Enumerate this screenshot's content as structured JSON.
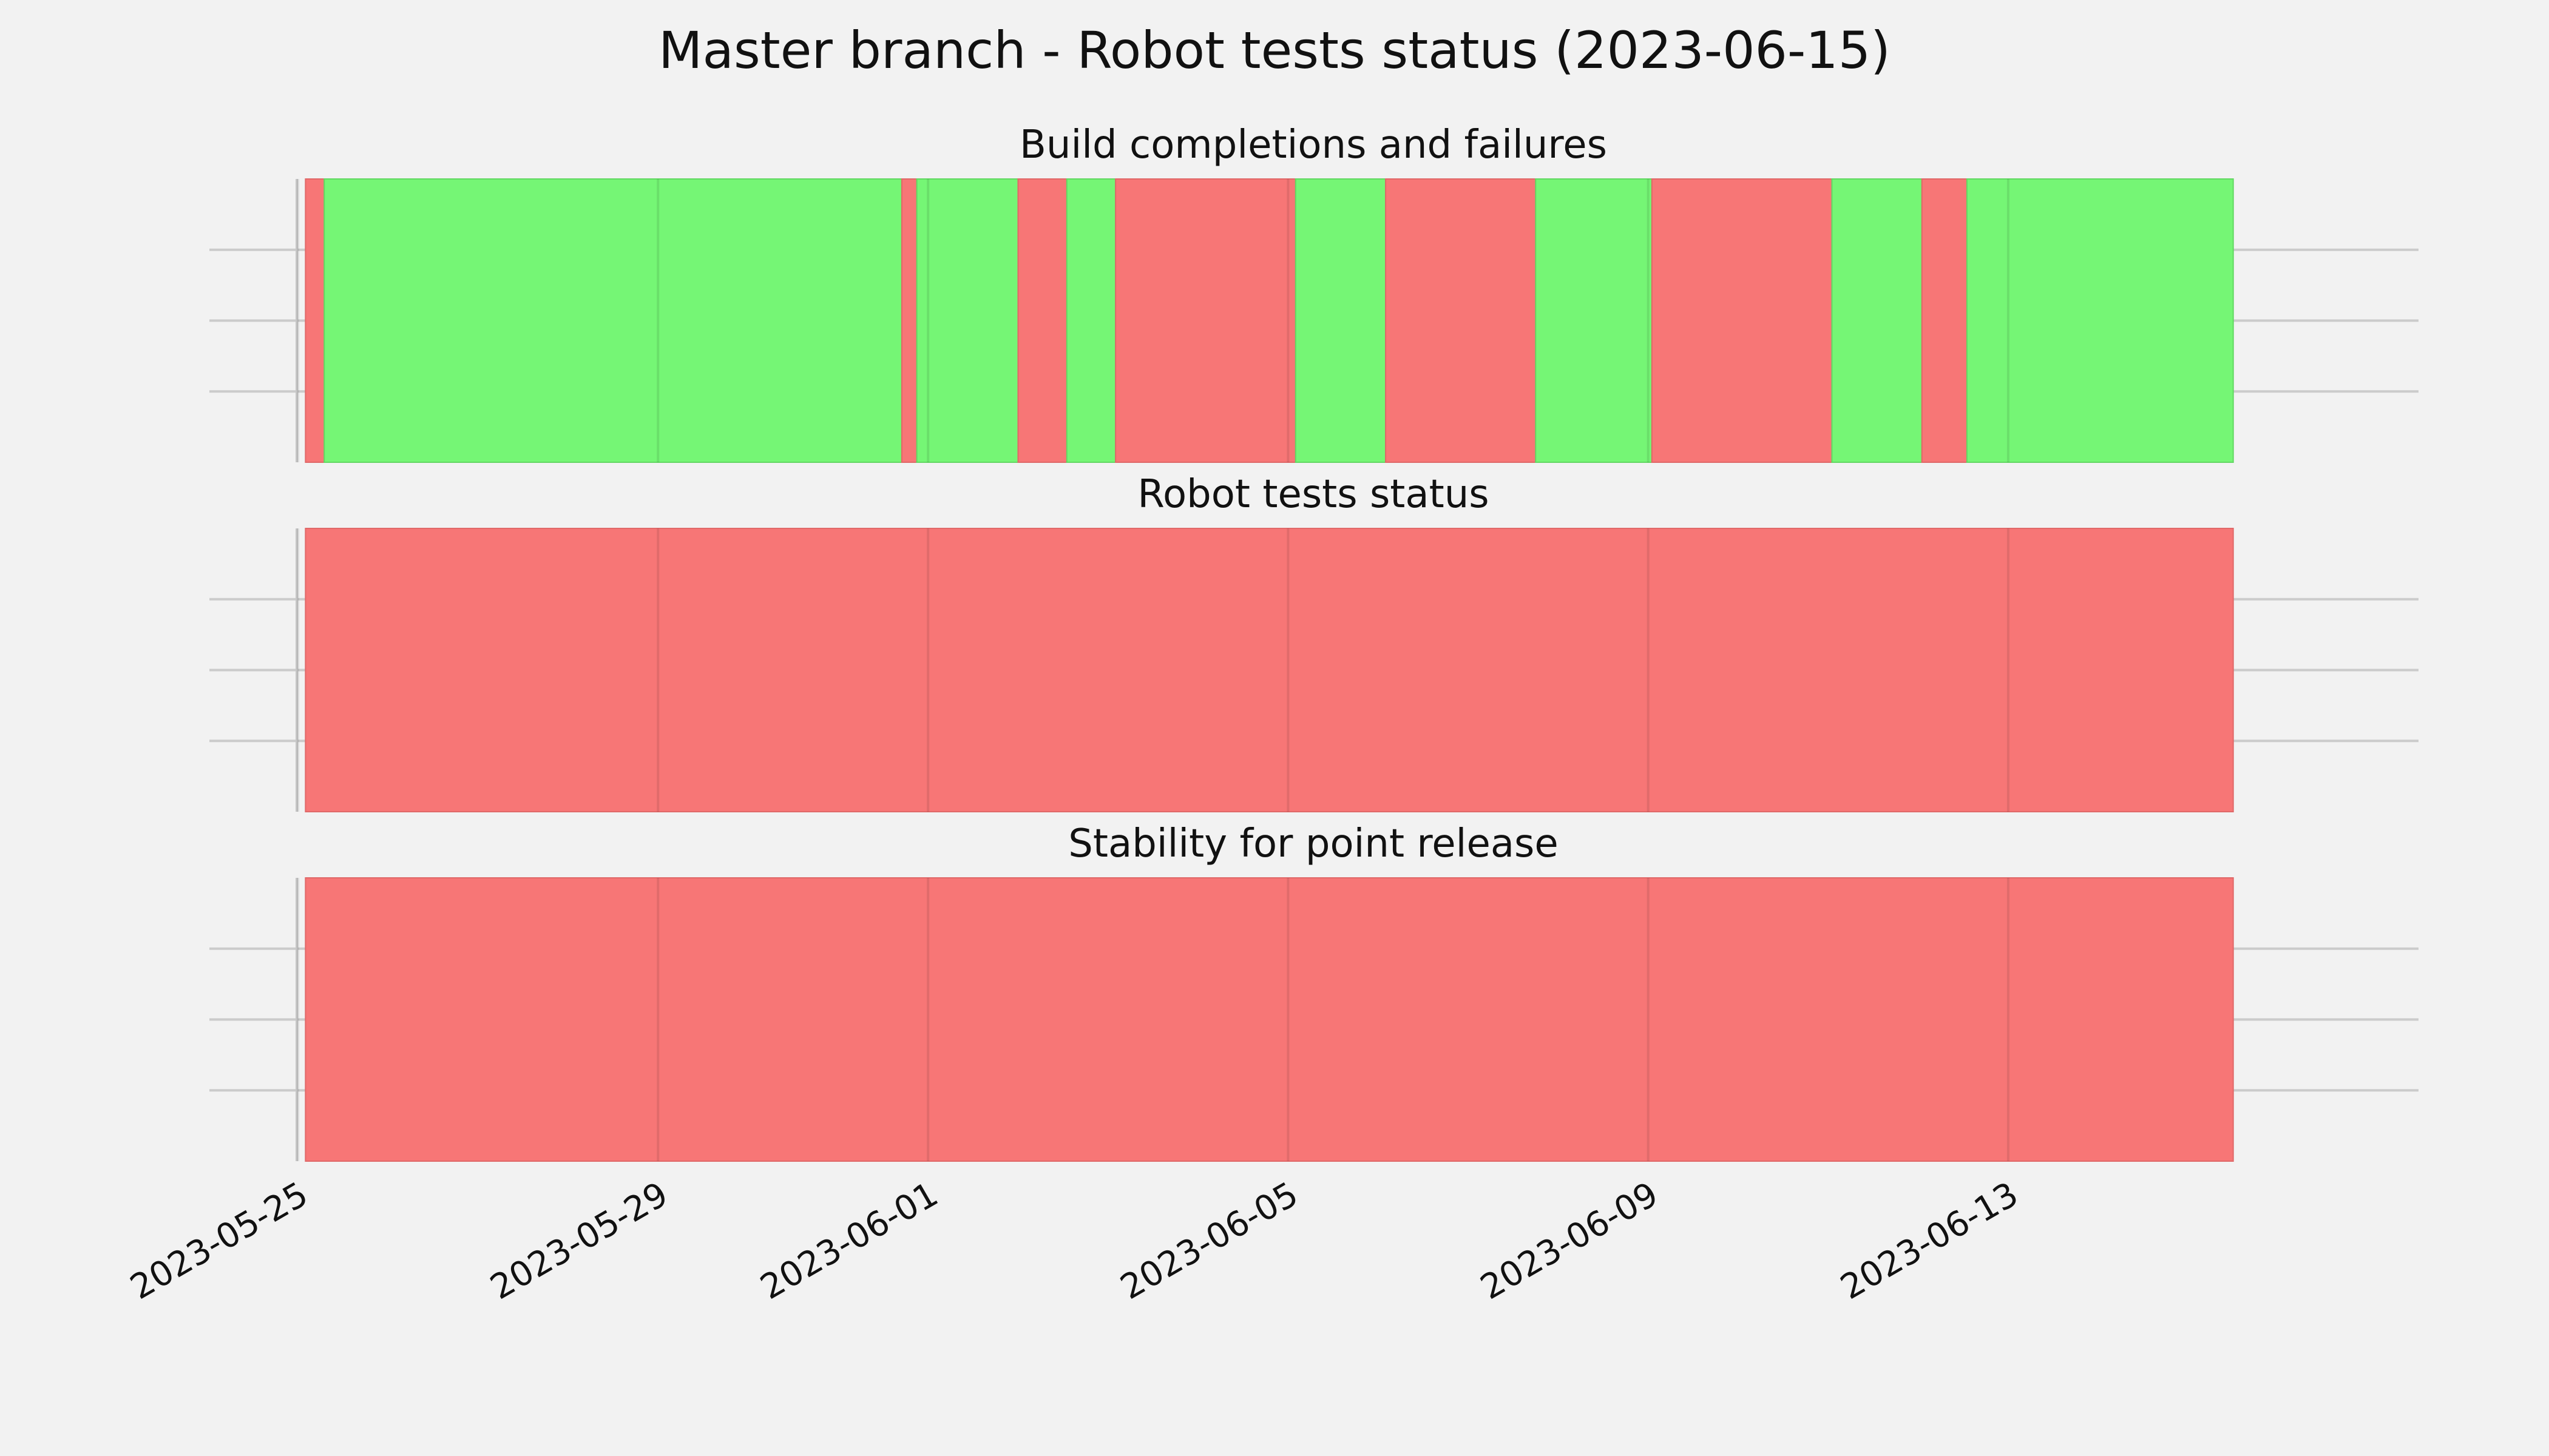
{
  "chart_data": {
    "type": "timeline",
    "title": "Master branch - Robot tests status (2023-06-15)",
    "x_type": "date",
    "xlim": [
      "2023-05-25",
      "2023-06-16T12:00"
    ],
    "x_ticks": [
      "2023-05-25",
      "2023-05-29",
      "2023-06-01",
      "2023-06-05",
      "2023-06-09",
      "2023-06-13"
    ],
    "y_ticks_visible": false,
    "grid": true,
    "colors": {
      "success": "#75f675",
      "failure": "#f77676",
      "background": "#f2f2f2"
    },
    "panels": [
      {
        "title": "Build completions and failures",
        "segments": [
          {
            "start": "2023-05-25T02:00",
            "end": "2023-05-25T07:00",
            "status": "failure"
          },
          {
            "start": "2023-05-25T07:00",
            "end": "2023-05-31T17:00",
            "status": "success"
          },
          {
            "start": "2023-05-31T17:00",
            "end": "2023-05-31T21:00",
            "status": "failure"
          },
          {
            "start": "2023-05-31T21:00",
            "end": "2023-06-02T00:00",
            "status": "success"
          },
          {
            "start": "2023-06-02T00:00",
            "end": "2023-06-02T13:00",
            "status": "failure"
          },
          {
            "start": "2023-06-02T13:00",
            "end": "2023-06-03T02:00",
            "status": "success"
          },
          {
            "start": "2023-06-03T02:00",
            "end": "2023-06-05T02:00",
            "status": "failure"
          },
          {
            "start": "2023-06-05T02:00",
            "end": "2023-06-06T02:00",
            "status": "success"
          },
          {
            "start": "2023-06-06T02:00",
            "end": "2023-06-07T18:00",
            "status": "failure"
          },
          {
            "start": "2023-06-07T18:00",
            "end": "2023-06-09T01:00",
            "status": "success"
          },
          {
            "start": "2023-06-09T01:00",
            "end": "2023-06-11T01:00",
            "status": "failure"
          },
          {
            "start": "2023-06-11T01:00",
            "end": "2023-06-12T01:00",
            "status": "success"
          },
          {
            "start": "2023-06-12T01:00",
            "end": "2023-06-12T13:00",
            "status": "failure"
          },
          {
            "start": "2023-06-12T13:00",
            "end": "2023-06-15T12:00",
            "status": "success"
          }
        ]
      },
      {
        "title": "Robot tests status",
        "segments": [
          {
            "start": "2023-05-25T02:00",
            "end": "2023-06-15T12:00",
            "status": "failure"
          }
        ]
      },
      {
        "title": "Stability for point release",
        "segments": [
          {
            "start": "2023-05-25T02:00",
            "end": "2023-06-15T12:00",
            "status": "failure"
          }
        ]
      }
    ]
  }
}
